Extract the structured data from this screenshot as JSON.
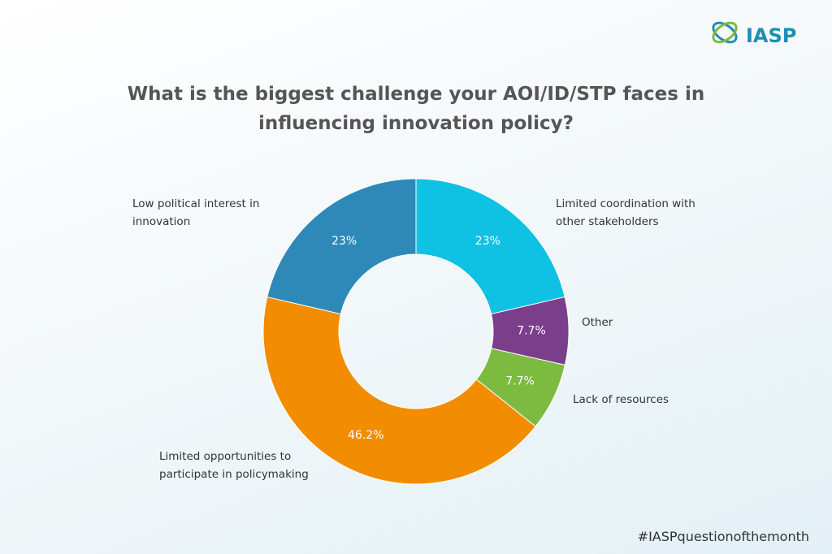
{
  "logo": "IASP",
  "footer": "#IASPquestionofthemonth",
  "chart_data": {
    "type": "donut",
    "title": "What is the biggest challenge your AOI/ID/STP faces in influencing innovation policy?",
    "categories": [
      "Limited coordination with other stakeholders",
      "Other",
      "Lack of resources",
      "Limited opportunities to participate in policymaking",
      "Low political interest in innovation"
    ],
    "values": [
      23,
      7.7,
      7.7,
      46.2,
      23
    ],
    "value_labels": [
      "23%",
      "7.7%",
      "7.7%",
      "46.2%",
      "23%"
    ],
    "colors": [
      "#0fc1e2",
      "#7a3e8b",
      "#7dba40",
      "#f28c00",
      "#2e89b8"
    ]
  }
}
